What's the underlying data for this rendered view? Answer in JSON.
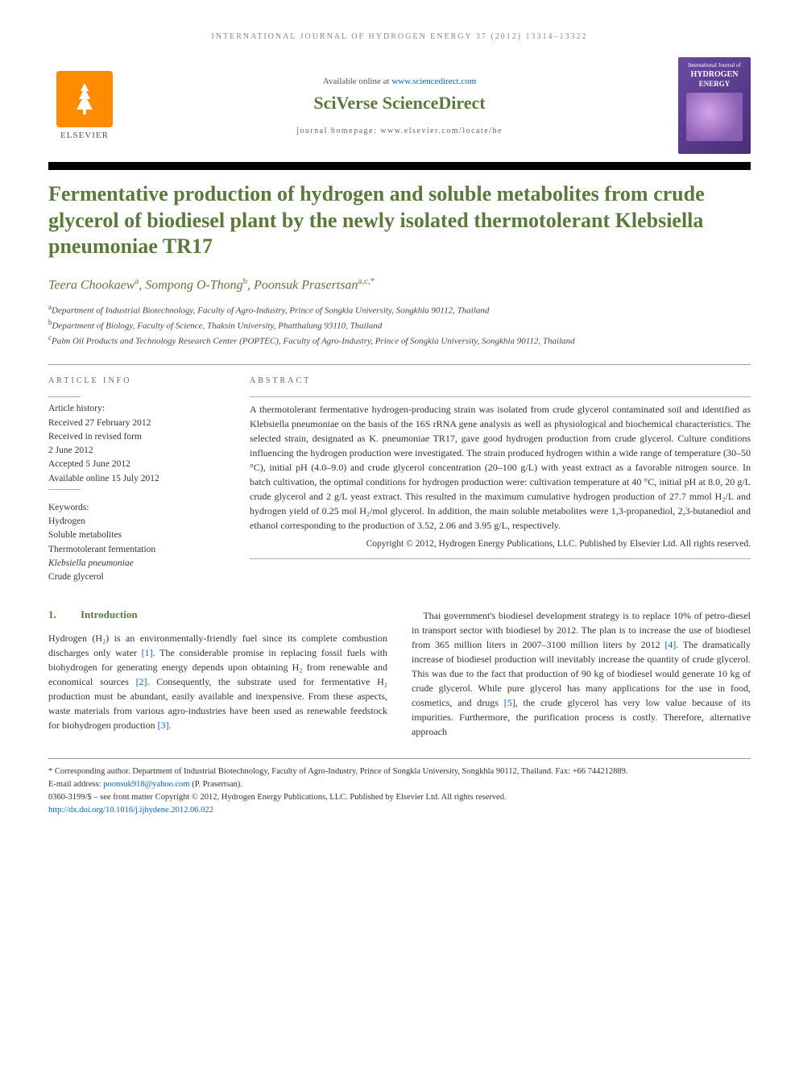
{
  "running_header": "INTERNATIONAL JOURNAL OF HYDROGEN ENERGY 37 (2012) 13314–13322",
  "banner": {
    "elsevier_label": "ELSEVIER",
    "available_prefix": "Available online at ",
    "available_url": "www.sciencedirect.com",
    "sciverse": "SciVerse ScienceDirect",
    "homepage_prefix": "journal homepage: ",
    "homepage_url": "www.elsevier.com/locate/he",
    "cover_line1": "International Journal of",
    "cover_line2": "HYDROGEN",
    "cover_line3": "ENERGY"
  },
  "title": "Fermentative production of hydrogen and soluble metabolites from crude glycerol of biodiesel plant by the newly isolated thermotolerant Klebsiella pneumoniae TR17",
  "authors_html": "Teera Chookaew<sup>a</sup>, Sompong O-Thong<sup>b</sup>, Poonsuk Prasertsan<sup>a,c,*</sup>",
  "affiliations": {
    "a": "Department of Industrial Biotechnology, Faculty of Agro-Industry, Prince of Songkla University, Songkhla 90112, Thailand",
    "b": "Department of Biology, Faculty of Science, Thaksin University, Phatthalung 93110, Thailand",
    "c": "Palm Oil Products and Technology Research Center (POPTEC), Faculty of Agro-Industry, Prince of Songkla University, Songkhla 90112, Thailand"
  },
  "info": {
    "label": "ARTICLE INFO",
    "history_label": "Article history:",
    "received": "Received 27 February 2012",
    "revised_label": "Received in revised form",
    "revised_date": "2 June 2012",
    "accepted": "Accepted 5 June 2012",
    "online": "Available online 15 July 2012",
    "keywords_label": "Keywords:",
    "keywords": [
      "Hydrogen",
      "Soluble metabolites",
      "Thermotolerant fermentation",
      "Klebsiella pneumoniae",
      "Crude glycerol"
    ]
  },
  "abstract": {
    "label": "ABSTRACT",
    "text": "A thermotolerant fermentative hydrogen-producing strain was isolated from crude glycerol contaminated soil and identified as Klebsiella pneumoniae on the basis of the 16S rRNA gene analysis as well as physiological and biochemical characteristics. The selected strain, designated as K. pneumoniae TR17, gave good hydrogen production from crude glycerol. Culture conditions influencing the hydrogen production were investigated. The strain produced hydrogen within a wide range of temperature (30–50 °C), initial pH (4.0–9.0) and crude glycerol concentration (20–100 g/L) with yeast extract as a favorable nitrogen source. In batch cultivation, the optimal conditions for hydrogen production were: cultivation temperature at 40 °C, initial pH at 8.0, 20 g/L crude glycerol and 2 g/L yeast extract. This resulted in the maximum cumulative hydrogen production of 27.7 mmol H₂/L and hydrogen yield of 0.25 mol H₂/mol glycerol. In addition, the main soluble metabolites were 1,3-propanediol, 2,3-butanediol and ethanol corresponding to the production of 3.52, 2.06 and 3.95 g/L, respectively.",
    "copyright": "Copyright © 2012, Hydrogen Energy Publications, LLC. Published by Elsevier Ltd. All rights reserved."
  },
  "introduction": {
    "number": "1.",
    "heading": "Introduction",
    "col1": "Hydrogen (H₂) is an environmentally-friendly fuel since its complete combustion discharges only water [1]. The considerable promise in replacing fossil fuels with biohydrogen for generating energy depends upon obtaining H₂ from renewable and economical sources [2]. Consequently, the substrate used for fermentative H₂ production must be abundant, easily available and inexpensive. From these aspects, waste materials from various agro-industries have been used as renewable feedstock for biohydrogen production [3].",
    "col2": "Thai government's biodiesel development strategy is to replace 10% of petro-diesel in transport sector with biodiesel by 2012. The plan is to increase the use of biodiesel from 365 million liters in 2007–3100 million liters by 2012 [4]. The dramatically increase of biodiesel production will inevitably increase the quantity of crude glycerol. This was due to the fact that production of 90 kg of biodiesel would generate 10 kg of crude glycerol. While pure glycerol has many applications for the use in food, cosmetics, and drugs [5], the crude glycerol has very low value because of its impurities. Furthermore, the purification process is costly. Therefore, alternative approach"
  },
  "footnotes": {
    "corresponding": "* Corresponding author. Department of Industrial Biotechnology, Faculty of Agro-Industry, Prince of Songkla University, Songkhla 90112, Thailand. Fax: +66 744212889.",
    "email_label": "E-mail address: ",
    "email": "poonsuk918@yahoo.com",
    "email_suffix": " (P. Prasertsan).",
    "issn_line": "0360-3199/$ – see front matter Copyright © 2012, Hydrogen Energy Publications, LLC. Published by Elsevier Ltd. All rights reserved.",
    "doi": "http://dx.doi.org/10.1016/j.ijhydene.2012.06.022"
  },
  "colors": {
    "accent_green": "#5a7a3a",
    "link_blue": "#0066cc",
    "elsevier_orange": "#ff8c00",
    "cover_purple1": "#6b4ba3",
    "cover_purple2": "#4a2d7a"
  }
}
